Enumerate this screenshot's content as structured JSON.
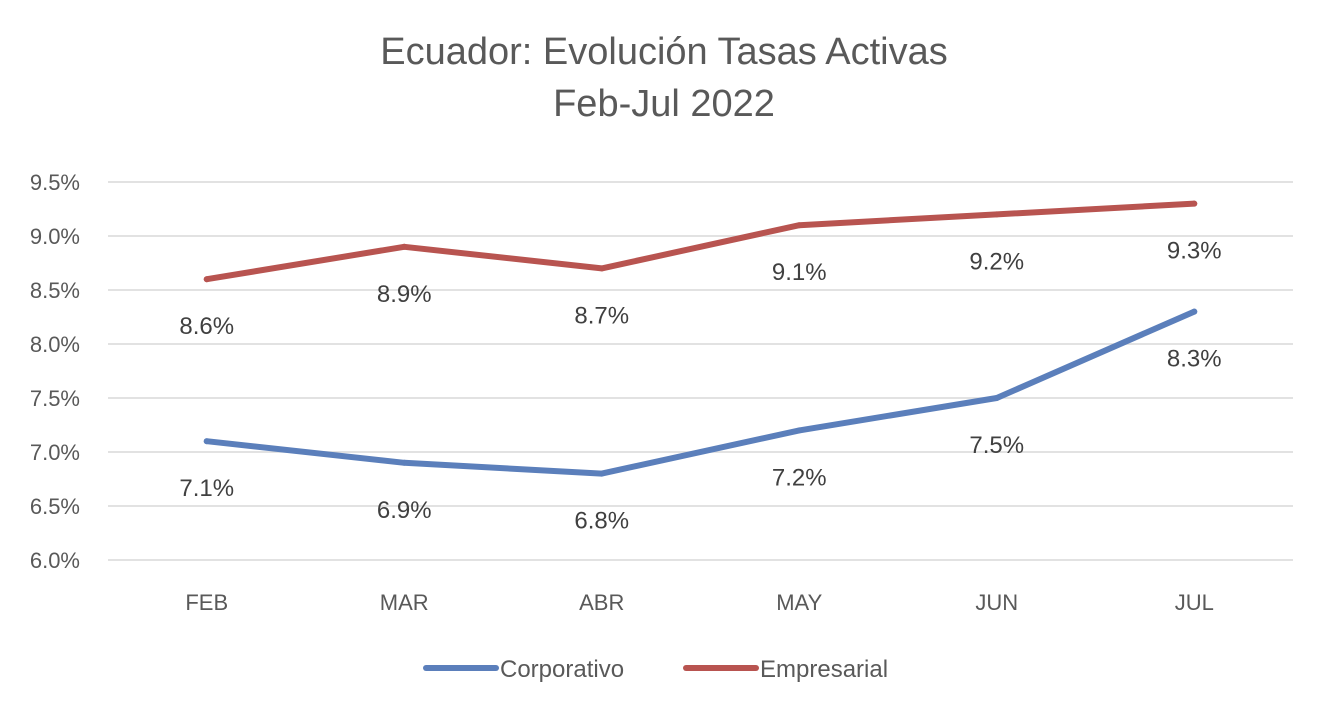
{
  "chart_data": {
    "type": "line",
    "title": "Ecuador: Evolución Tasas Activas",
    "subtitle": "Feb-Jul 2022",
    "categories": [
      "FEB",
      "MAR",
      "ABR",
      "MAY",
      "JUN",
      "JUL"
    ],
    "y_ticks": [
      "6.0%",
      "6.5%",
      "7.0%",
      "7.5%",
      "8.0%",
      "8.5%",
      "9.0%",
      "9.5%"
    ],
    "ylim": [
      6.0,
      9.5
    ],
    "grid": true,
    "legend_position": "bottom",
    "series": [
      {
        "name": "Corporativo",
        "color": "#5B7FBB",
        "values": [
          7.1,
          6.9,
          6.8,
          7.2,
          7.5,
          8.3
        ],
        "labels": [
          "7.1%",
          "6.9%",
          "6.8%",
          "7.2%",
          "7.5%",
          "8.3%"
        ]
      },
      {
        "name": "Empresarial",
        "color": "#B85450",
        "values": [
          8.6,
          8.9,
          8.7,
          9.1,
          9.2,
          9.3
        ],
        "labels": [
          "8.6%",
          "8.9%",
          "8.7%",
          "9.1%",
          "9.2%",
          "9.3%"
        ]
      }
    ]
  }
}
